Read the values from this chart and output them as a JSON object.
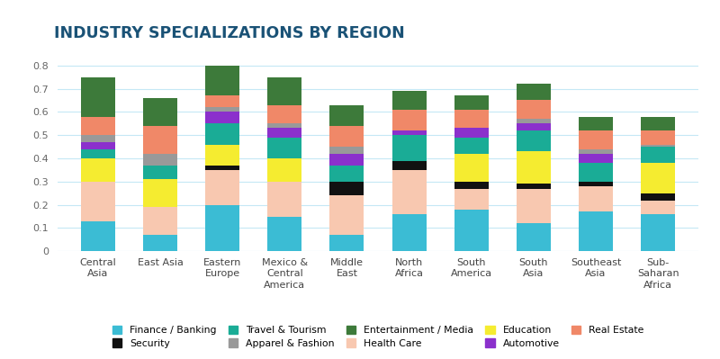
{
  "title": "INDUSTRY SPECIALIZATIONS BY REGION",
  "title_color": "#1a5276",
  "background_color": "#ffffff",
  "regions": [
    "Central\nAsia",
    "East Asia",
    "Eastern\nEurope",
    "Mexico &\nCentral\nAmerica",
    "Middle\nEast",
    "North\nAfrica",
    "South\nAmerica",
    "South\nAsia",
    "Southeast\nAsia",
    "Sub-\nSaharan\nAfrica"
  ],
  "industries": [
    "Finance / Banking",
    "Health Care",
    "Security",
    "Education",
    "Travel & Tourism",
    "Automotive",
    "Apparel & Fashion",
    "Real Estate",
    "Entertainment /\nMedia"
  ],
  "colors": [
    "#3bbcd4",
    "#f8c8b0",
    "#111111",
    "#f5ec30",
    "#1aac96",
    "#8b30cc",
    "#999999",
    "#f08868",
    "#3d7a3a"
  ],
  "data": {
    "Finance / Banking": [
      0.13,
      0.07,
      0.2,
      0.15,
      0.07,
      0.16,
      0.18,
      0.12,
      0.17,
      0.16
    ],
    "Health Care": [
      0.17,
      0.12,
      0.15,
      0.15,
      0.17,
      0.19,
      0.09,
      0.15,
      0.11,
      0.06
    ],
    "Security": [
      0.0,
      0.0,
      0.02,
      0.0,
      0.06,
      0.04,
      0.03,
      0.02,
      0.02,
      0.03
    ],
    "Education": [
      0.1,
      0.12,
      0.09,
      0.1,
      0.0,
      0.0,
      0.12,
      0.14,
      0.0,
      0.13
    ],
    "Travel & Tourism": [
      0.04,
      0.06,
      0.09,
      0.09,
      0.07,
      0.11,
      0.07,
      0.09,
      0.08,
      0.07
    ],
    "Automotive": [
      0.03,
      0.0,
      0.05,
      0.04,
      0.05,
      0.02,
      0.04,
      0.03,
      0.04,
      0.0
    ],
    "Apparel & Fashion": [
      0.03,
      0.05,
      0.02,
      0.02,
      0.03,
      0.0,
      0.0,
      0.02,
      0.02,
      0.01
    ],
    "Real Estate": [
      0.08,
      0.12,
      0.05,
      0.08,
      0.09,
      0.09,
      0.08,
      0.08,
      0.08,
      0.06
    ],
    "Entertainment /\nMedia": [
      0.17,
      0.12,
      0.13,
      0.12,
      0.09,
      0.08,
      0.06,
      0.07,
      0.06,
      0.06
    ]
  },
  "ylim": [
    0,
    0.85
  ],
  "yticks": [
    0,
    0.1,
    0.2,
    0.3,
    0.4,
    0.5,
    0.6,
    0.7,
    0.8
  ],
  "grid_color": "#c5e8f5",
  "bar_width": 0.55,
  "legend_order": [
    "Finance / Banking",
    "Security",
    "Travel & Tourism",
    "Apparel & Fashion",
    "Entertainment /\nMedia",
    "Health Care",
    "Education",
    "Automotive",
    "Real Estate"
  ]
}
